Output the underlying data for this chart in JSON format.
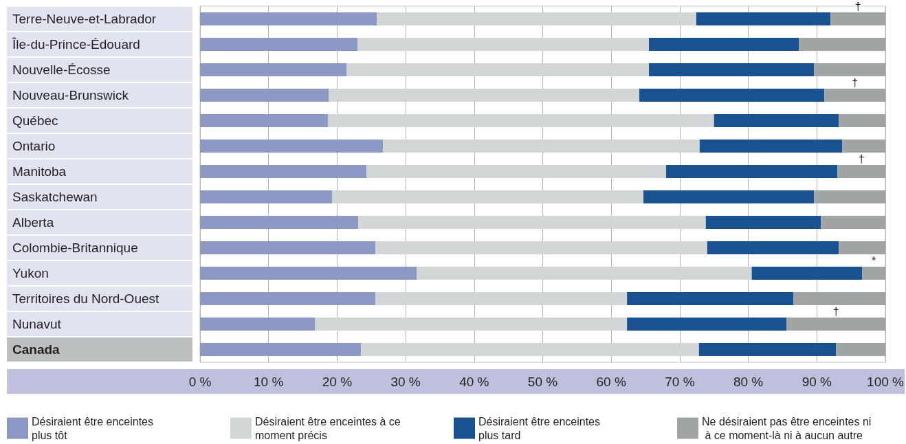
{
  "chart_data": {
    "type": "bar",
    "orientation": "horizontal",
    "stacked": true,
    "categories": [
      "Terre-Neuve-et-Labrador",
      "Île-du-Prince-Édouard",
      "Nouvelle-Écosse",
      "Nouveau-Brunswick",
      "Québec",
      "Ontario",
      "Manitoba",
      "Saskatchewan",
      "Alberta",
      "Colombie-Britannique",
      "Yukon",
      "Territoires du Nord-Ouest",
      "Nunavut",
      "Canada"
    ],
    "series": [
      {
        "name": "Désiraient être enceintes plus tôt",
        "color": "#8c99c4",
        "values": [
          25.8,
          23.0,
          21.4,
          18.8,
          18.7,
          26.7,
          24.3,
          19.3,
          23.1,
          25.6,
          31.6,
          25.6,
          16.8,
          23.5
        ]
      },
      {
        "name": "Désiraient être enceintes à ce moment précis",
        "color": "#d2d6d7",
        "values": [
          46.6,
          42.5,
          44.1,
          45.3,
          56.3,
          46.2,
          43.7,
          45.4,
          50.7,
          48.4,
          48.9,
          36.7,
          45.5,
          49.3
        ]
      },
      {
        "name": "Désiraient être enceintes plus tard",
        "color": "#1a5191",
        "values": [
          19.6,
          21.9,
          24.1,
          27.0,
          18.2,
          20.8,
          25.0,
          24.9,
          16.8,
          19.2,
          16.1,
          24.3,
          23.3,
          20.0
        ]
      },
      {
        "name": "Ne désiraient pas être enceintes ni à ce moment-là ni à aucun autre",
        "color": "#a0a4a5",
        "values": [
          8.0,
          12.6,
          10.4,
          8.9,
          6.8,
          6.3,
          7.0,
          10.4,
          9.4,
          6.8,
          3.4,
          13.4,
          14.4,
          7.2
        ],
        "value_labels": [
          "†",
          null,
          null,
          "†",
          null,
          null,
          "†",
          null,
          null,
          null,
          "*",
          null,
          "†",
          null
        ]
      }
    ],
    "xlim": [
      0,
      100
    ],
    "xticks": [
      {
        "value": 0,
        "label": "0 %"
      },
      {
        "value": 10,
        "label": "10 %"
      },
      {
        "value": 20,
        "label": "20 %"
      },
      {
        "value": 30,
        "label": "30 %"
      },
      {
        "value": 40,
        "label": "40 %"
      },
      {
        "value": 50,
        "label": "50 %"
      },
      {
        "value": 60,
        "label": "60 %"
      },
      {
        "value": 70,
        "label": "70 %"
      },
      {
        "value": 80,
        "label": "80 %"
      },
      {
        "value": 90,
        "label": "90 %"
      },
      {
        "value": 100,
        "label": "100 %"
      }
    ],
    "grid": "x",
    "legend": "bottom"
  }
}
